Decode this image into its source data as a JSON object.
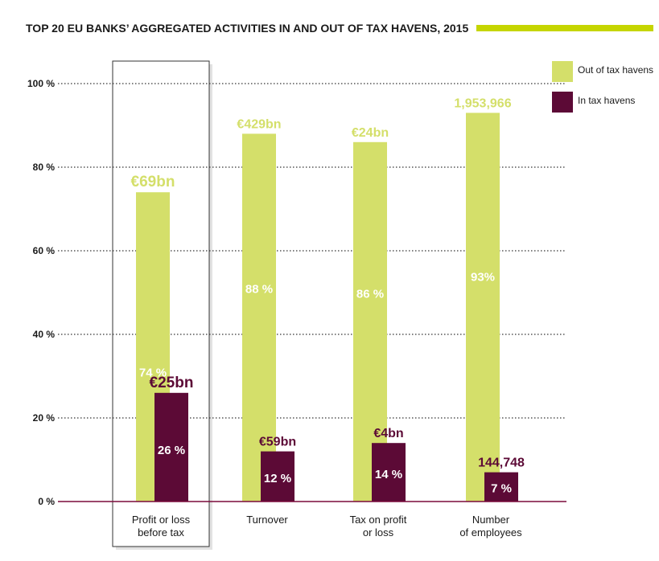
{
  "colors": {
    "out_of_tax_havens": "#d4df6a",
    "in_tax_havens": "#5c0a36",
    "title_bar": "#c5d500",
    "baseline": "#7a0a3a",
    "grid": "#333333"
  },
  "chart_data": {
    "type": "bar",
    "title": "TOP 20 EU BANKS’ AGGREGATED ACTIVITIES IN AND OUT OF TAX HAVENS, 2015",
    "xlabel": "",
    "ylabel": "",
    "ylim": [
      0,
      100
    ],
    "yticks": [
      0,
      20,
      40,
      60,
      80,
      100
    ],
    "ytick_labels": [
      "0 %",
      "20 %",
      "40 %",
      "60 %",
      "80 %",
      "100 %"
    ],
    "categories": [
      [
        "Profit or loss",
        "before tax"
      ],
      [
        "Turnover"
      ],
      [
        "Tax on profit",
        "or loss"
      ],
      [
        "Number",
        "of employees"
      ]
    ],
    "highlighted_category_index": 0,
    "legend_position": "top-right",
    "series": [
      {
        "name": "Out of tax havens",
        "color_key": "out_of_tax_havens",
        "values": [
          74,
          88,
          86,
          93
        ],
        "percent_labels": [
          "74 %",
          "88 %",
          "86 %",
          "93%"
        ],
        "value_labels": [
          "€69bn",
          "€429bn",
          "€24bn",
          "1,953,966"
        ]
      },
      {
        "name": "In tax havens",
        "color_key": "in_tax_havens",
        "values": [
          26,
          12,
          14,
          7
        ],
        "percent_labels": [
          "26 %",
          "12 %",
          "14 %",
          "7 %"
        ],
        "value_labels": [
          "€25bn",
          "€59bn",
          "€4bn",
          "144,748"
        ]
      }
    ]
  }
}
